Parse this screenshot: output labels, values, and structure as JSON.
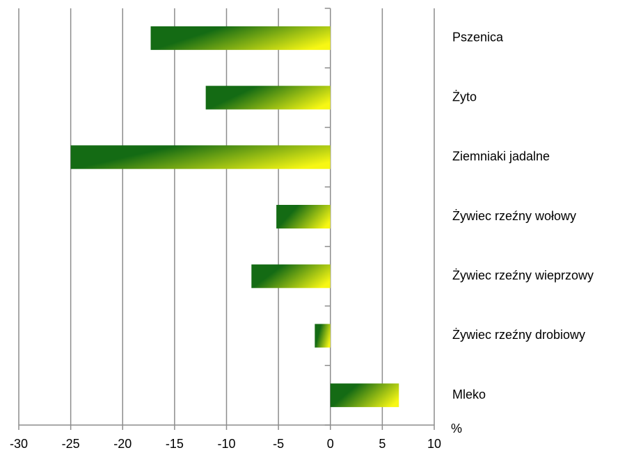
{
  "chart_data": {
    "type": "barh",
    "categories": [
      "Pszenica",
      "Żyto",
      "Ziemniaki jadalne",
      "Żywiec rzeźny wołowy",
      "Żywiec rzeźny wieprzowy",
      "Żywiec rzeźny drobiowy",
      "Mleko"
    ],
    "values": [
      -17.3,
      -12.0,
      -25.0,
      -5.2,
      -7.6,
      -1.5,
      6.6
    ],
    "gradient": [
      "#146b14",
      "#f7f714"
    ],
    "x_label": "%",
    "xlim": [
      -30,
      10
    ],
    "xticks": [
      -30,
      -25,
      -20,
      -15,
      -10,
      -5,
      0,
      5,
      10
    ],
    "grid": true
  }
}
